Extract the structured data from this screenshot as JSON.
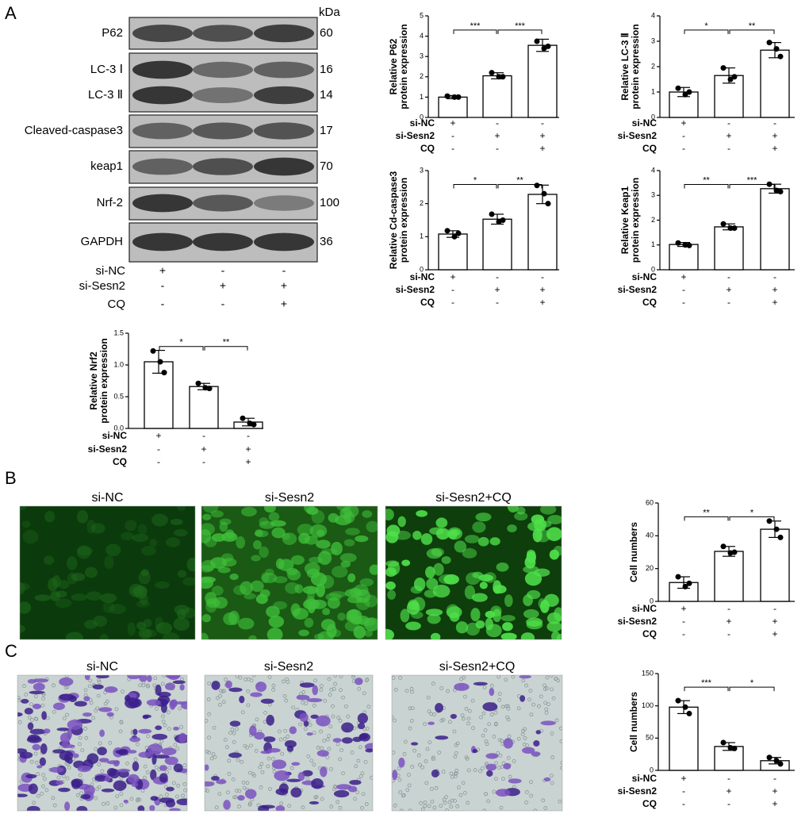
{
  "panel_labels": [
    "A",
    "B",
    "C"
  ],
  "blot": {
    "unit": "kDa",
    "bands": [
      {
        "name": "P62",
        "kda": 60
      },
      {
        "name": "LC-3 Ⅰ",
        "kda": 16
      },
      {
        "name": "LC-3 Ⅱ",
        "kda": 14
      },
      {
        "name": "Cleaved-caspase3",
        "kda": 17
      },
      {
        "name": "keap1",
        "kda": 70
      },
      {
        "name": "Nrf-2",
        "kda": 100
      },
      {
        "name": "GAPDH",
        "kda": 36
      }
    ],
    "conditions": [
      {
        "name": "si-NC",
        "signs": [
          "+",
          "-",
          "-"
        ]
      },
      {
        "name": "si-Sesn2",
        "signs": [
          "-",
          "+",
          "+"
        ]
      },
      {
        "name": "CQ",
        "signs": [
          "-",
          "-",
          "+"
        ]
      }
    ]
  },
  "images_B": [
    "si-NC",
    "si-Sesn2",
    "si-Sesn2+CQ"
  ],
  "images_C": [
    "si-NC",
    "si-Sesn2",
    "si-Sesn2+CQ"
  ],
  "chart_data": [
    {
      "type": "bar",
      "ylabel": [
        "Relative P62",
        "protein expression"
      ],
      "ylim": [
        0,
        5
      ],
      "yticks": [
        0,
        1,
        2,
        3,
        4,
        5
      ],
      "values": [
        1.0,
        2.05,
        3.55
      ],
      "errors": [
        0.08,
        0.15,
        0.3
      ],
      "points": [
        [
          1.05,
          1.0,
          1.0
        ],
        [
          2.2,
          2.0,
          2.0
        ],
        [
          3.75,
          3.4,
          3.5
        ]
      ],
      "significance": [
        "***",
        "***"
      ],
      "conditions": [
        {
          "name": "si-NC",
          "signs": [
            "+",
            "-",
            "-"
          ]
        },
        {
          "name": "si-Sesn2",
          "signs": [
            "-",
            "+",
            "+"
          ]
        },
        {
          "name": "CQ",
          "signs": [
            "-",
            "-",
            "+"
          ]
        }
      ]
    },
    {
      "type": "bar",
      "ylabel": [
        "Relative LC-3 Ⅱ",
        "protein expression"
      ],
      "ylim": [
        0,
        4
      ],
      "yticks": [
        0,
        1,
        2,
        3,
        4
      ],
      "values": [
        1.0,
        1.65,
        2.65
      ],
      "errors": [
        0.18,
        0.3,
        0.3
      ],
      "points": [
        [
          1.15,
          0.9,
          1.0
        ],
        [
          1.95,
          1.5,
          1.6
        ],
        [
          2.95,
          2.7,
          2.4
        ]
      ],
      "significance": [
        "*",
        "**"
      ],
      "conditions": [
        {
          "name": "si-NC",
          "signs": [
            "+",
            "-",
            "-"
          ]
        },
        {
          "name": "si-Sesn2",
          "signs": [
            "-",
            "+",
            "+"
          ]
        },
        {
          "name": "CQ",
          "signs": [
            "-",
            "-",
            "+"
          ]
        }
      ]
    },
    {
      "type": "bar",
      "ylabel": [
        "Relative Cd-caspase3",
        "protein expression"
      ],
      "ylim": [
        0,
        3
      ],
      "yticks": [
        0,
        1,
        2,
        3
      ],
      "values": [
        1.08,
        1.53,
        2.28
      ],
      "errors": [
        0.1,
        0.15,
        0.28
      ],
      "points": [
        [
          1.18,
          1.0,
          1.1
        ],
        [
          1.68,
          1.45,
          1.5
        ],
        [
          2.55,
          2.3,
          2.0
        ]
      ],
      "significance": [
        "*",
        "**"
      ],
      "conditions": [
        {
          "name": "si-NC",
          "signs": [
            "+",
            "-",
            "-"
          ]
        },
        {
          "name": "si-Sesn2",
          "signs": [
            "-",
            "+",
            "+"
          ]
        },
        {
          "name": "CQ",
          "signs": [
            "-",
            "-",
            "+"
          ]
        }
      ]
    },
    {
      "type": "bar",
      "ylabel": [
        "Relative Keap1",
        "protein expression"
      ],
      "ylim": [
        0,
        4
      ],
      "yticks": [
        0,
        1,
        2,
        3,
        4
      ],
      "values": [
        1.02,
        1.73,
        3.27
      ],
      "errors": [
        0.08,
        0.12,
        0.18
      ],
      "points": [
        [
          1.08,
          1.0,
          0.98
        ],
        [
          1.85,
          1.68,
          1.68
        ],
        [
          3.45,
          3.2,
          3.15
        ]
      ],
      "significance": [
        "**",
        "***"
      ],
      "conditions": [
        {
          "name": "si-NC",
          "signs": [
            "+",
            "-",
            "-"
          ]
        },
        {
          "name": "si-Sesn2",
          "signs": [
            "-",
            "+",
            "+"
          ]
        },
        {
          "name": "CQ",
          "signs": [
            "-",
            "-",
            "+"
          ]
        }
      ]
    },
    {
      "type": "bar",
      "ylabel": [
        "Relative Nrf2",
        "protein expression"
      ],
      "ylim": [
        0,
        1.5
      ],
      "yticks": [
        {
          "value": 0,
          "label": "0.0"
        },
        0.5,
        {
          "value": 1,
          "label": "1.0"
        },
        1.5
      ],
      "values": [
        1.05,
        0.66,
        0.1
      ],
      "errors": [
        0.18,
        0.05,
        0.06
      ],
      "points": [
        [
          1.22,
          1.05,
          0.88
        ],
        [
          0.71,
          0.64,
          0.63
        ],
        [
          0.16,
          0.08,
          0.06
        ]
      ],
      "significance": [
        "*",
        "**"
      ],
      "conditions": [
        {
          "name": "si-NC",
          "signs": [
            "+",
            "-",
            "-"
          ]
        },
        {
          "name": "si-Sesn2",
          "signs": [
            "-",
            "+",
            "+"
          ]
        },
        {
          "name": "CQ",
          "signs": [
            "-",
            "-",
            "+"
          ]
        }
      ]
    },
    {
      "type": "bar",
      "ylabel": [
        "Cell numbers"
      ],
      "ylim": [
        0,
        60
      ],
      "yticks": [
        0,
        20,
        40,
        60
      ],
      "values": [
        11.5,
        30.5,
        44
      ],
      "errors": [
        3.5,
        3,
        5
      ],
      "points": [
        [
          15,
          9,
          11
        ],
        [
          33.5,
          29.5,
          30
        ],
        [
          49,
          44,
          39
        ]
      ],
      "significance": [
        "**",
        "*"
      ],
      "conditions": [
        {
          "name": "si-NC",
          "signs": [
            "+",
            "-",
            "-"
          ]
        },
        {
          "name": "si-Sesn2",
          "signs": [
            "-",
            "+",
            "+"
          ]
        },
        {
          "name": "CQ",
          "signs": [
            "-",
            "-",
            "+"
          ]
        }
      ]
    },
    {
      "type": "bar",
      "ylabel": [
        "Cell numbers"
      ],
      "ylim": [
        0,
        150
      ],
      "yticks": [
        0,
        50,
        100,
        150
      ],
      "values": [
        98,
        37,
        15
      ],
      "errors": [
        10,
        6,
        5
      ],
      "points": [
        [
          108,
          98,
          88
        ],
        [
          43,
          35,
          34
        ],
        [
          20,
          15,
          10
        ]
      ],
      "significance": [
        "***",
        "*"
      ],
      "conditions": [
        {
          "name": "si-NC",
          "signs": [
            "+",
            "-",
            "-"
          ]
        },
        {
          "name": "si-Sesn2",
          "signs": [
            "-",
            "+",
            "+"
          ]
        },
        {
          "name": "CQ",
          "signs": [
            "-",
            "-",
            "+"
          ]
        }
      ]
    }
  ]
}
